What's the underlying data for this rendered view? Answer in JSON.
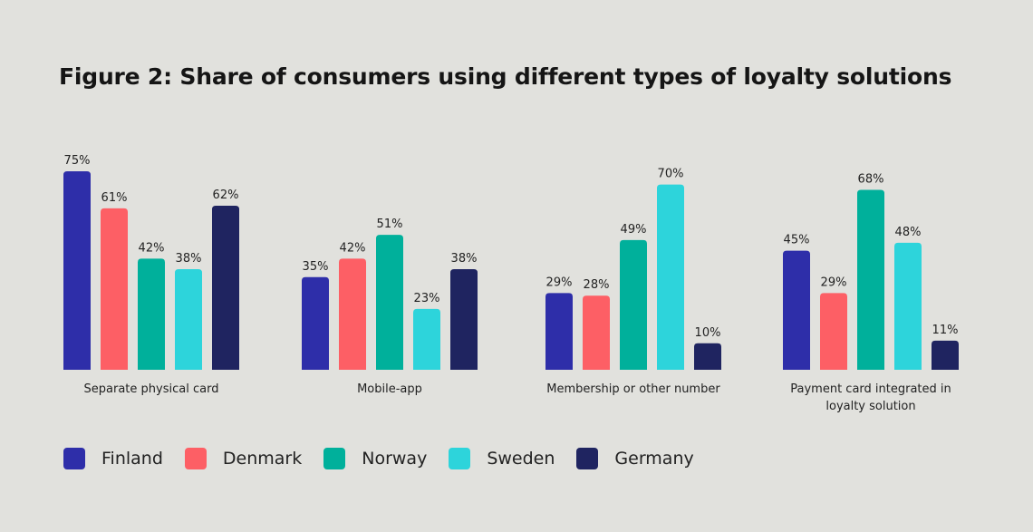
{
  "chart_data": {
    "type": "bar",
    "title": "Figure 2: Share of consumers using different types of loyalty solutions",
    "categories": [
      "Separate physical card",
      "Mobile-app",
      "Membership or other number",
      "Payment card integrated in loyalty solution"
    ],
    "series": [
      {
        "name": "Finland",
        "color": "#2e2ea9",
        "values": [
          75,
          35,
          29,
          45
        ]
      },
      {
        "name": "Denmark",
        "color": "#fd5f65",
        "values": [
          61,
          42,
          28,
          29
        ]
      },
      {
        "name": "Norway",
        "color": "#00b09b",
        "values": [
          42,
          51,
          49,
          68
        ]
      },
      {
        "name": "Sweden",
        "color": "#2dd4db",
        "values": [
          38,
          23,
          70,
          48
        ]
      },
      {
        "name": "Germany",
        "color": "#1f2460",
        "values": [
          62,
          38,
          10,
          11
        ]
      }
    ],
    "value_suffix": "%",
    "ylim": [
      0,
      100
    ],
    "grid": false,
    "legend_position": "bottom-left"
  }
}
